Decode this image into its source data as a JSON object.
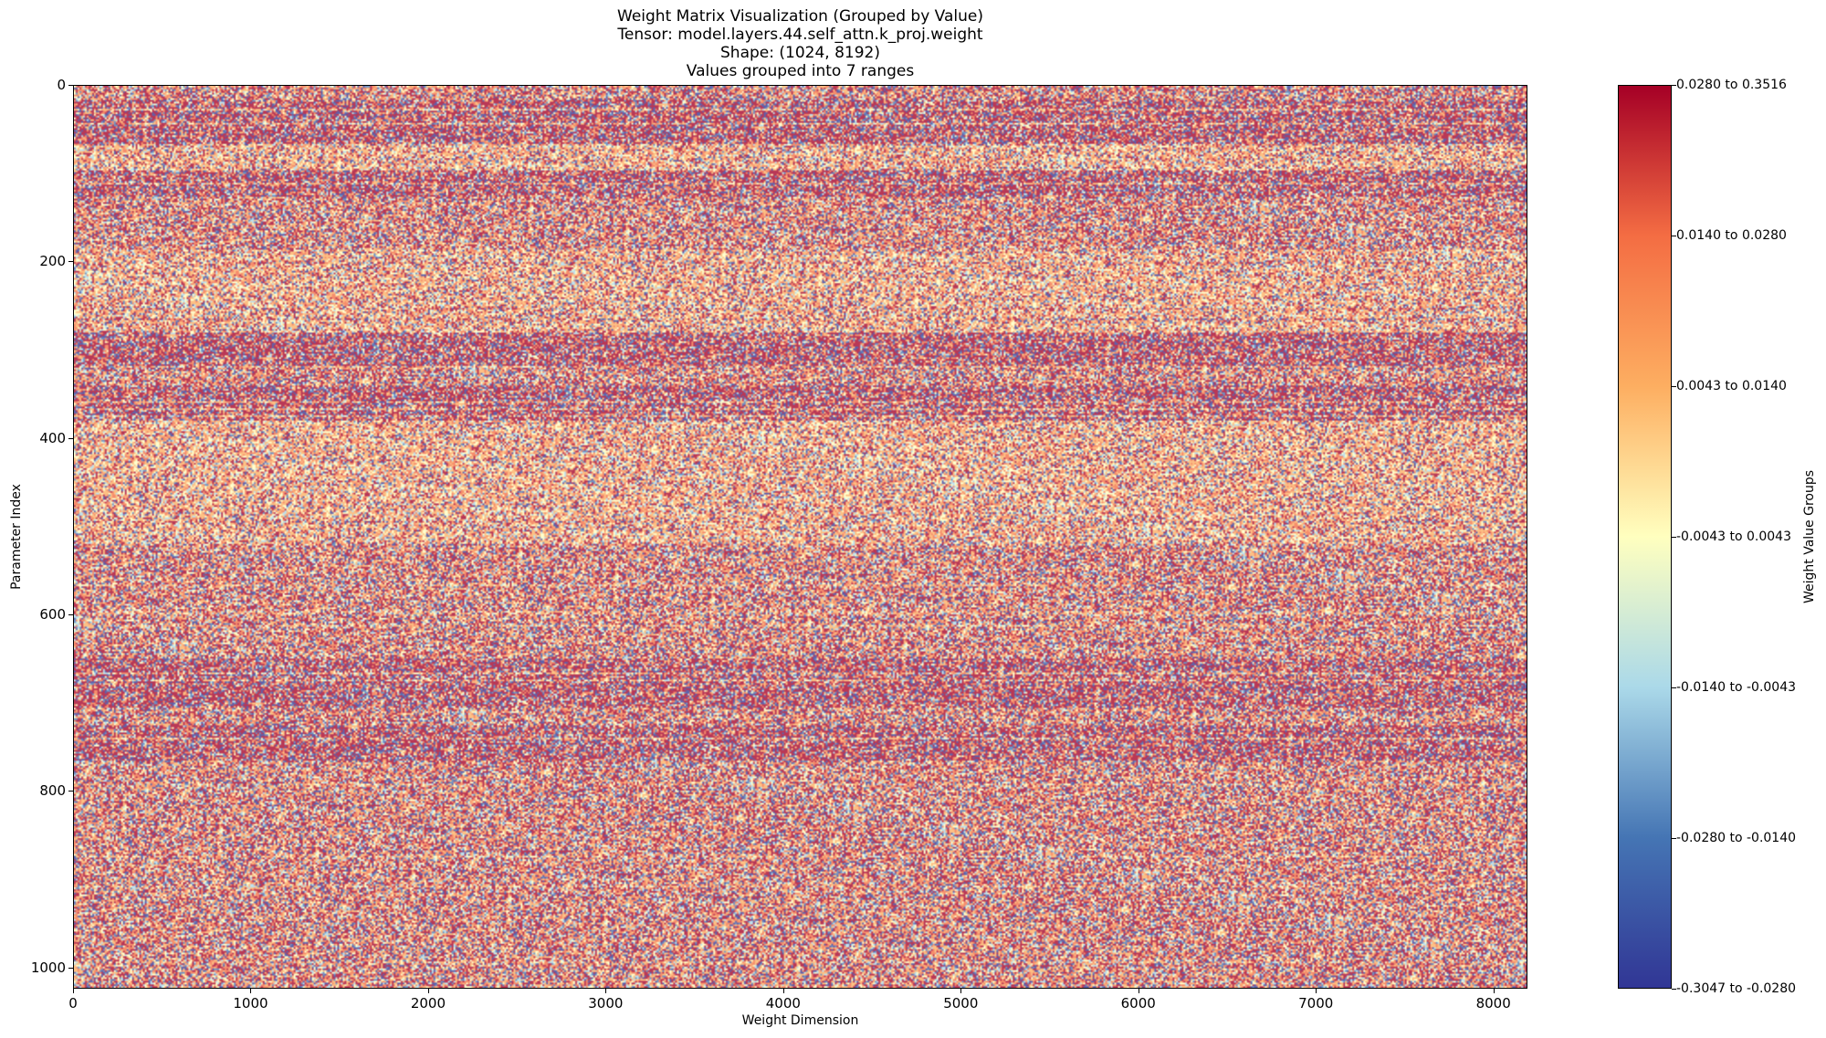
{
  "chart_data": {
    "type": "heatmap",
    "title_lines": [
      "Weight Matrix Visualization (Grouped by Value)",
      "Tensor: model.layers.44.self_attn.k_proj.weight",
      "Shape: (1024, 8192)",
      "Values grouped into 7 ranges"
    ],
    "xlabel": "Weight Dimension",
    "ylabel": "Parameter Index",
    "xlim": [
      0,
      8192
    ],
    "ylim": [
      1024,
      0
    ],
    "x_ticks": [
      0,
      1000,
      2000,
      3000,
      4000,
      5000,
      6000,
      7000,
      8000
    ],
    "y_ticks": [
      0,
      200,
      400,
      600,
      800,
      1000
    ],
    "x_tick_labels": [
      "0",
      "1000",
      "2000",
      "3000",
      "4000",
      "5000",
      "6000",
      "7000",
      "8000"
    ],
    "y_tick_labels": [
      "0",
      "200",
      "400",
      "600",
      "800",
      "1000"
    ],
    "colorbar": {
      "label": "Weight Value Groups",
      "colormap": "RdYlBu_r",
      "groups": [
        "-0.3047 to -0.0280",
        "-0.0280 to -0.0140",
        "-0.0140 to -0.0043",
        "-0.0043 to 0.0043",
        "0.0043 to 0.0140",
        "0.0140 to 0.0280",
        "0.0280 to 0.3516"
      ],
      "colors": [
        "#313695",
        "#4575b4",
        "#abd9e9",
        "#ffffbf",
        "#fdae61",
        "#f46d43",
        "#a50026"
      ]
    },
    "row_band_intensity": [
      {
        "rows": [
          0,
          15
        ],
        "level": "medium"
      },
      {
        "rows": [
          15,
          65
        ],
        "level": "high"
      },
      {
        "rows": [
          65,
          95
        ],
        "level": "low"
      },
      {
        "rows": [
          95,
          125
        ],
        "level": "high"
      },
      {
        "rows": [
          125,
          185
        ],
        "level": "medium"
      },
      {
        "rows": [
          185,
          280
        ],
        "level": "low"
      },
      {
        "rows": [
          280,
          320
        ],
        "level": "high"
      },
      {
        "rows": [
          320,
          340
        ],
        "level": "medium"
      },
      {
        "rows": [
          340,
          380
        ],
        "level": "high"
      },
      {
        "rows": [
          380,
          520
        ],
        "level": "low"
      },
      {
        "rows": [
          520,
          650
        ],
        "level": "medium"
      },
      {
        "rows": [
          650,
          705
        ],
        "level": "high"
      },
      {
        "rows": [
          705,
          725
        ],
        "level": "medium"
      },
      {
        "rows": [
          725,
          765
        ],
        "level": "high"
      },
      {
        "rows": [
          765,
          1024
        ],
        "level": "medium"
      }
    ]
  }
}
